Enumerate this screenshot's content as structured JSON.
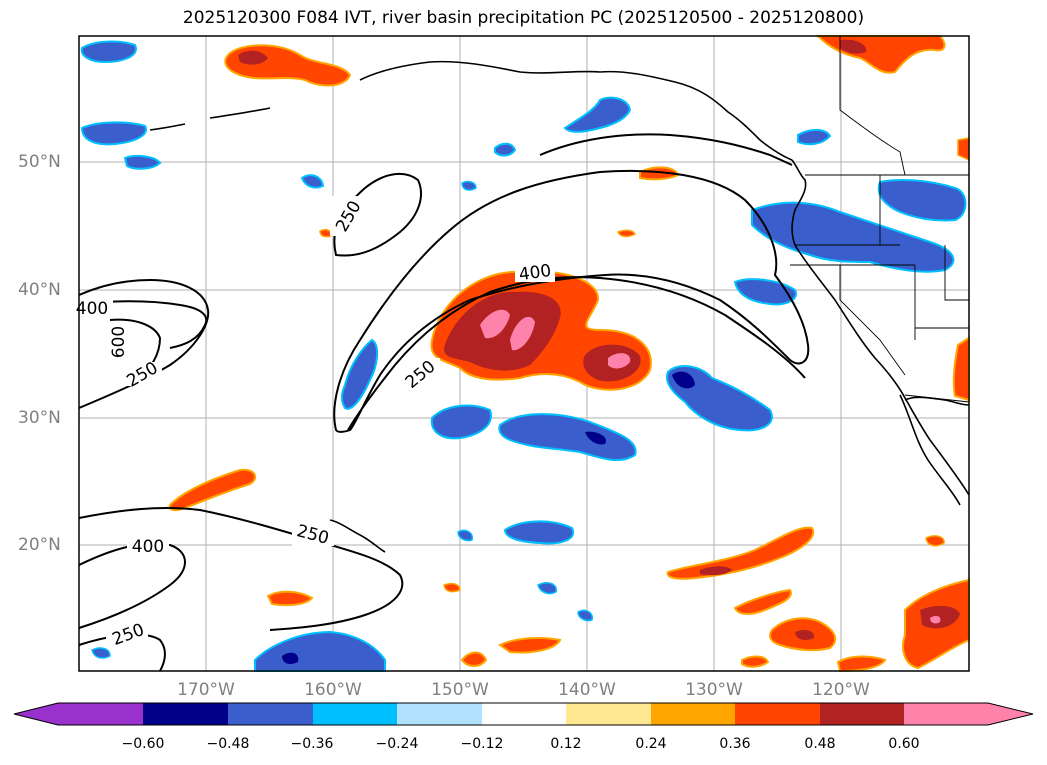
{
  "title": "2025120300 F084 IVT, river basin precipitation PC (2025120500 - 2025120800)",
  "map": {
    "lat_labels": [
      "50°N",
      "40°N",
      "30°N",
      "20°N"
    ],
    "lon_labels": [
      "170°W",
      "160°W",
      "150°W",
      "140°W",
      "130°W",
      "120°W"
    ],
    "contour_labels": [
      "250",
      "400",
      "250",
      "400",
      "600",
      "250",
      "400",
      "250",
      "250"
    ]
  },
  "colorbar": {
    "ticks": [
      "−0.60",
      "−0.48",
      "−0.36",
      "−0.24",
      "−0.12",
      "0.12",
      "0.24",
      "0.36",
      "0.48",
      "0.60"
    ],
    "colors": [
      "#9932cc",
      "#00008b",
      "#3a5fcd",
      "#00bfff",
      "#b0e2ff",
      "#ffffff",
      "#ffe88f",
      "#ffa500",
      "#ff4500",
      "#b22222",
      "#ff82ab",
      "#ff82ab"
    ]
  }
}
